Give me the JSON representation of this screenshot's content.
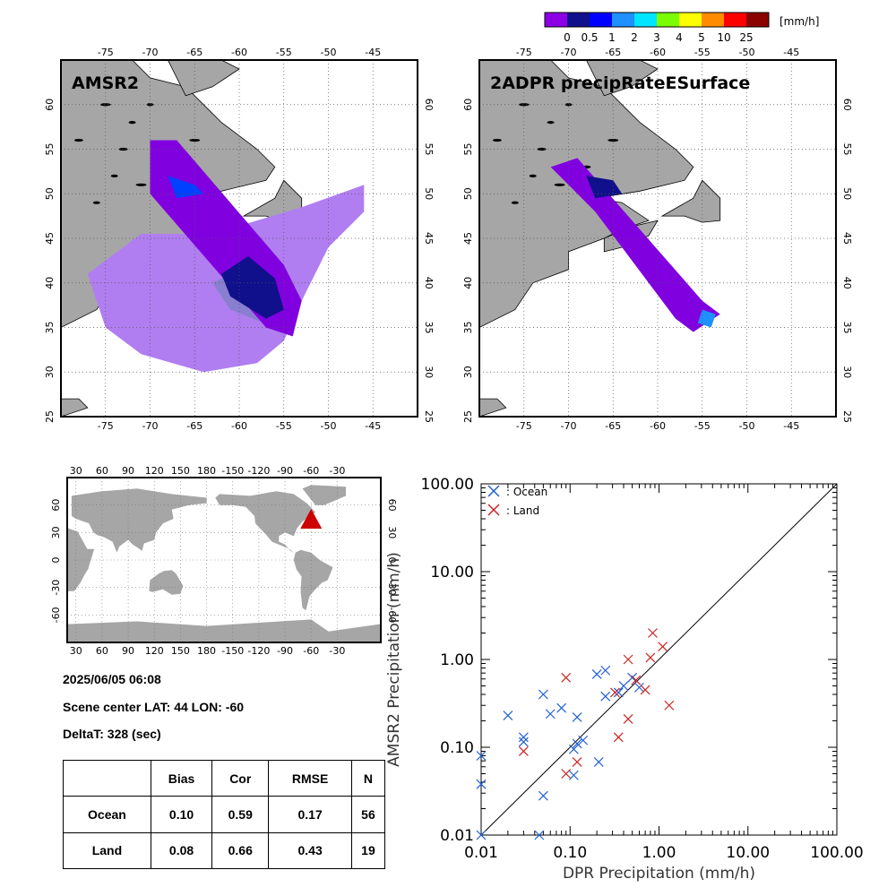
{
  "colorbar": {
    "unit": "[mm/h]",
    "labels": [
      "0",
      "0.5",
      "1",
      "2",
      "3",
      "4",
      "5",
      "10",
      "25"
    ],
    "colors": [
      "#8c00e6",
      "#10108c",
      "#0000ff",
      "#1e90ff",
      "#00e5ff",
      "#7cfc00",
      "#ffff00",
      "#ff8c00",
      "#ff0000",
      "#8b0000"
    ]
  },
  "maps": [
    {
      "title": "AMSR2",
      "lon_ticks": [
        "-75",
        "-70",
        "-65",
        "-60",
        "-55",
        "-50",
        "-45"
      ],
      "lat_ticks": [
        "25",
        "30",
        "35",
        "40",
        "45",
        "50",
        "55",
        "60"
      ]
    },
    {
      "title": "2ADPR precipRateESurface",
      "lon_ticks": [
        "-75",
        "-70",
        "-65",
        "-60",
        "-55",
        "-50",
        "-45"
      ],
      "lat_ticks": [
        "25",
        "30",
        "35",
        "40",
        "45",
        "50",
        "55",
        "60"
      ]
    }
  ],
  "globe": {
    "lon_ticks": [
      "30",
      "60",
      "90",
      "120",
      "150",
      "180",
      "-150",
      "-120",
      "-90",
      "-60",
      "-30"
    ],
    "lat_ticks": [
      "-60",
      "-30",
      "0",
      "30",
      "60"
    ],
    "marker_color": "#cc0000"
  },
  "info": {
    "datetime": "2025/06/05 06:08",
    "scene_center": "Scene center LAT: 44   LON: -60",
    "deltat": "DeltaT:  328 (sec)"
  },
  "stats": {
    "headers": [
      "",
      "Bias",
      "Cor",
      "RMSE",
      "N"
    ],
    "rows": [
      [
        "Ocean",
        "0.10",
        "0.59",
        "0.17",
        "56"
      ],
      [
        "Land",
        "0.08",
        "0.66",
        "0.43",
        "19"
      ]
    ]
  },
  "chart_data": {
    "type": "scatter",
    "xlabel": "DPR Precipitation (mm/h)",
    "ylabel": "AMSR2 Precipitation (mm/h)",
    "xscale": "log",
    "yscale": "log",
    "xlim": [
      0.01,
      100
    ],
    "ylim": [
      0.01,
      100
    ],
    "tick_labels": [
      "0.01",
      "0.10",
      "1.00",
      "10.00",
      "100.00"
    ],
    "legend_position": "top-left",
    "series": [
      {
        "name": ": Ocean",
        "color": "#1f5fd6",
        "points": [
          [
            0.01,
            0.08
          ],
          [
            0.01,
            0.038
          ],
          [
            0.01,
            0.01
          ],
          [
            0.02,
            0.23
          ],
          [
            0.03,
            0.13
          ],
          [
            0.03,
            0.115
          ],
          [
            0.045,
            0.01
          ],
          [
            0.05,
            0.4
          ],
          [
            0.05,
            0.028
          ],
          [
            0.06,
            0.24
          ],
          [
            0.08,
            0.28
          ],
          [
            0.11,
            0.048
          ],
          [
            0.11,
            0.095
          ],
          [
            0.12,
            0.22
          ],
          [
            0.12,
            0.11
          ],
          [
            0.14,
            0.12
          ],
          [
            0.2,
            0.68
          ],
          [
            0.21,
            0.068
          ],
          [
            0.25,
            0.75
          ],
          [
            0.25,
            0.38
          ],
          [
            0.35,
            0.42
          ],
          [
            0.4,
            0.5
          ],
          [
            0.5,
            0.62
          ],
          [
            0.6,
            0.48
          ]
        ]
      },
      {
        "name": ": Land",
        "color": "#cc2222",
        "points": [
          [
            0.03,
            0.09
          ],
          [
            0.09,
            0.62
          ],
          [
            0.09,
            0.05
          ],
          [
            0.12,
            0.068
          ],
          [
            0.32,
            0.42
          ],
          [
            0.35,
            0.13
          ],
          [
            0.45,
            0.21
          ],
          [
            0.45,
            1.0
          ],
          [
            0.55,
            0.58
          ],
          [
            0.7,
            0.45
          ],
          [
            0.8,
            1.05
          ],
          [
            0.85,
            2.0
          ],
          [
            1.1,
            1.4
          ],
          [
            1.3,
            0.3
          ]
        ]
      }
    ]
  }
}
